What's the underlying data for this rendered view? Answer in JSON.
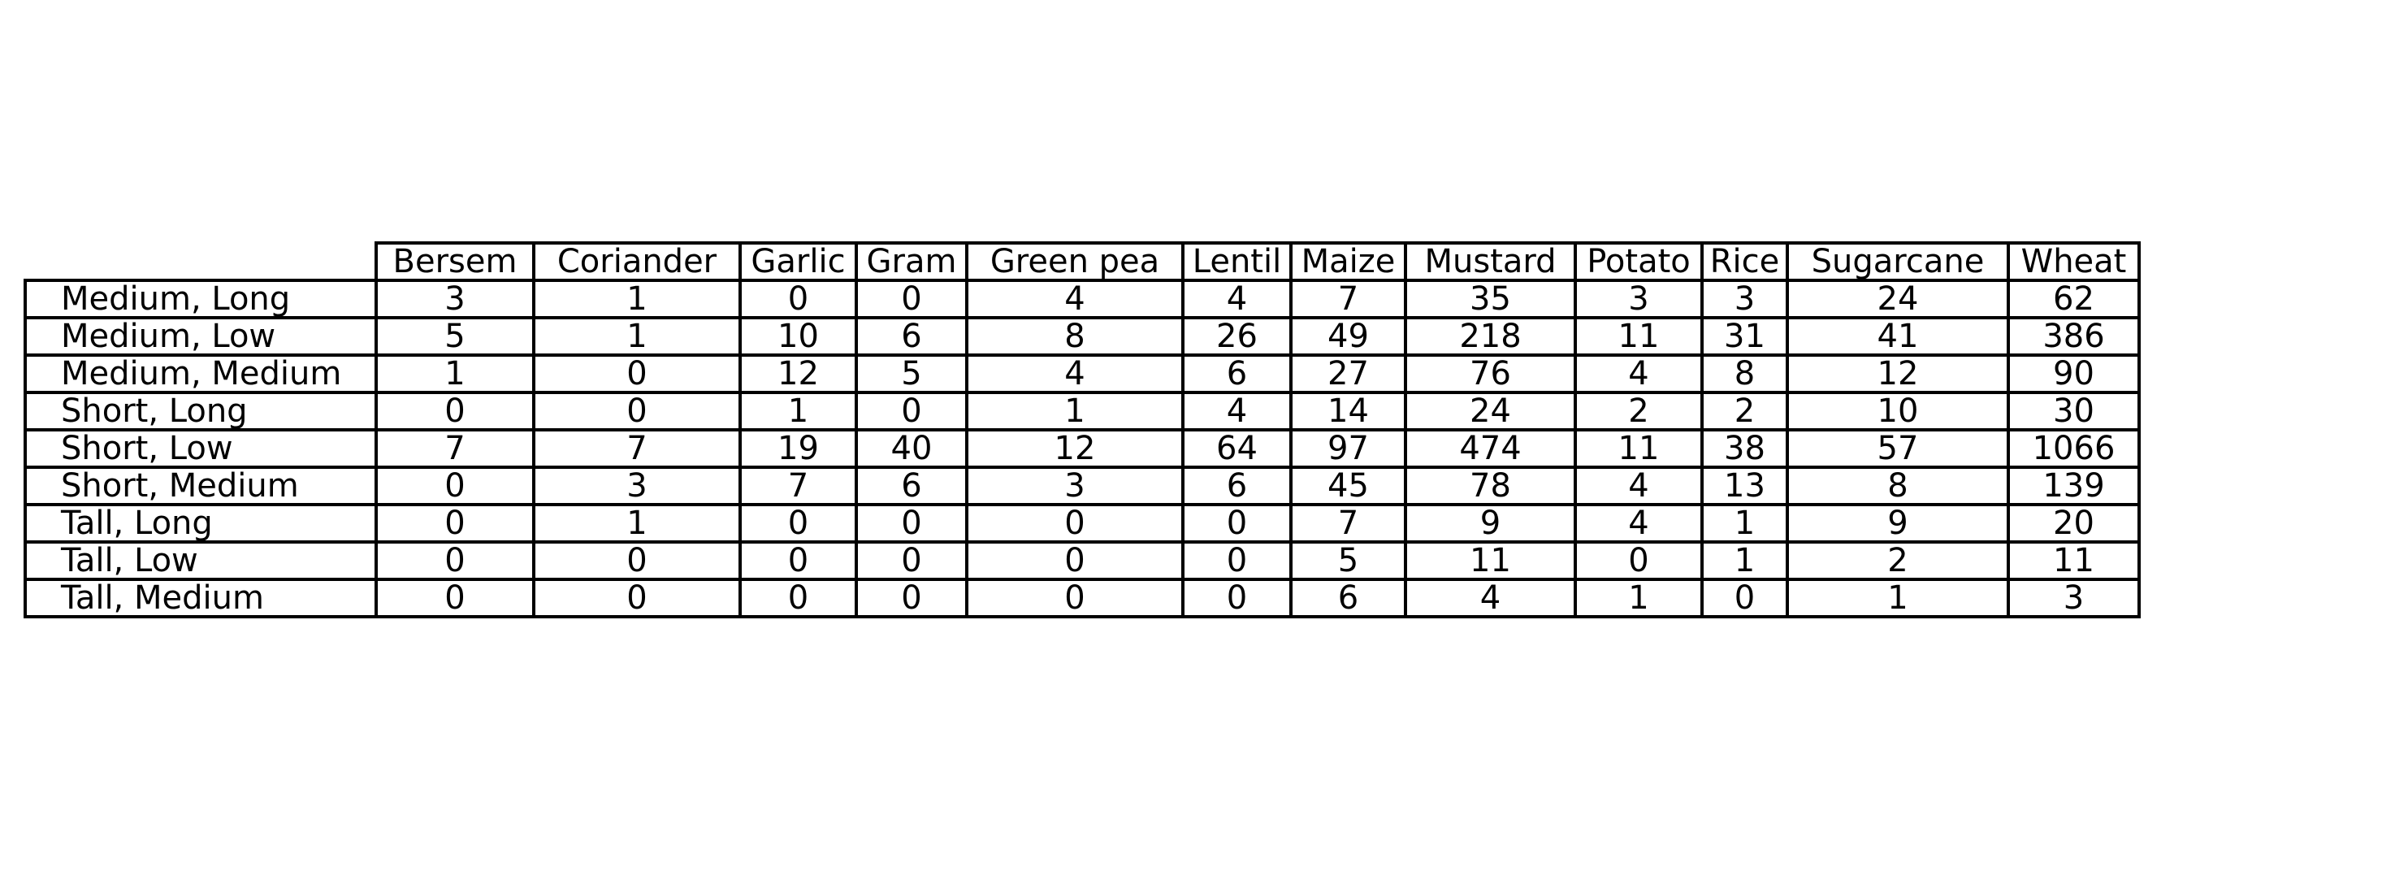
{
  "chart_data": {
    "type": "table",
    "columns": [
      "Bersem",
      "Coriander",
      "Garlic",
      "Gram",
      "Green pea",
      "Lentil",
      "Maize",
      "Mustard",
      "Potato",
      "Rice",
      "Sugarcane",
      "Wheat"
    ],
    "rows": [
      {
        "label": "Medium, Long",
        "values": [
          "3",
          "1",
          "0",
          "0",
          "4",
          "4",
          "7",
          "35",
          "3",
          "3",
          "24",
          "62"
        ]
      },
      {
        "label": "Medium, Low",
        "values": [
          "5",
          "1",
          "10",
          "6",
          "8",
          "26",
          "49",
          "218",
          "11",
          "31",
          "41",
          "386"
        ]
      },
      {
        "label": "Medium, Medium",
        "values": [
          "1",
          "0",
          "12",
          "5",
          "4",
          "6",
          "27",
          "76",
          "4",
          "8",
          "12",
          "90"
        ]
      },
      {
        "label": "Short, Long",
        "values": [
          "0",
          "0",
          "1",
          "0",
          "1",
          "4",
          "14",
          "24",
          "2",
          "2",
          "10",
          "30"
        ]
      },
      {
        "label": "Short, Low",
        "values": [
          "7",
          "7",
          "19",
          "40",
          "12",
          "64",
          "97",
          "474",
          "11",
          "38",
          "57",
          "1066"
        ]
      },
      {
        "label": "Short, Medium",
        "values": [
          "0",
          "3",
          "7",
          "6",
          "3",
          "6",
          "45",
          "78",
          "4",
          "13",
          "8",
          "139"
        ]
      },
      {
        "label": "Tall, Long",
        "values": [
          "0",
          "1",
          "0",
          "0",
          "0",
          "0",
          "7",
          "9",
          "4",
          "1",
          "9",
          "20"
        ]
      },
      {
        "label": "Tall, Low",
        "values": [
          "0",
          "0",
          "0",
          "0",
          "0",
          "0",
          "5",
          "11",
          "0",
          "1",
          "2",
          "11"
        ]
      },
      {
        "label": "Tall, Medium",
        "values": [
          "0",
          "0",
          "0",
          "0",
          "0",
          "0",
          "6",
          "4",
          "1",
          "0",
          "1",
          "3"
        ]
      }
    ]
  }
}
